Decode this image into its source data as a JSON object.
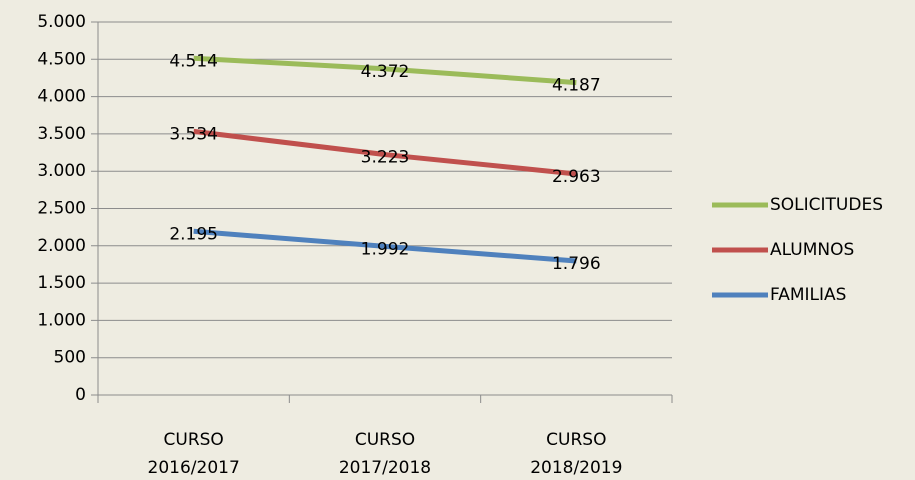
{
  "chart_data": {
    "type": "line",
    "categories": [
      "CURSO 2016/2017",
      "CURSO 2017/2018",
      "CURSO 2018/2019"
    ],
    "series": [
      {
        "name": "SOLICITUDES",
        "color": "#9bbb59",
        "values": [
          4514,
          4372,
          4187
        ],
        "value_labels": [
          "4.514",
          "4.372",
          "4.187"
        ]
      },
      {
        "name": "ALUMNOS",
        "color": "#c0504d",
        "values": [
          3534,
          3223,
          2963
        ],
        "value_labels": [
          "3.534",
          "3.223",
          "2.963"
        ]
      },
      {
        "name": "FAMILIAS",
        "color": "#4f81bd",
        "values": [
          2195,
          1992,
          1796
        ],
        "value_labels": [
          "2.195",
          "1.992",
          "1.796"
        ]
      }
    ],
    "ylim": [
      0,
      5000
    ],
    "yticks": [
      {
        "value": 0,
        "label": "0"
      },
      {
        "value": 500,
        "label": "500"
      },
      {
        "value": 1000,
        "label": "1.000"
      },
      {
        "value": 1500,
        "label": "1.500"
      },
      {
        "value": 2000,
        "label": "2.000"
      },
      {
        "value": 2500,
        "label": "2.500"
      },
      {
        "value": 3000,
        "label": "3.000"
      },
      {
        "value": 3500,
        "label": "3.500"
      },
      {
        "value": 4000,
        "label": "4.000"
      },
      {
        "value": 4500,
        "label": "4.500"
      },
      {
        "value": 5000,
        "label": "5.000"
      }
    ],
    "grid": true,
    "legend": "right"
  }
}
